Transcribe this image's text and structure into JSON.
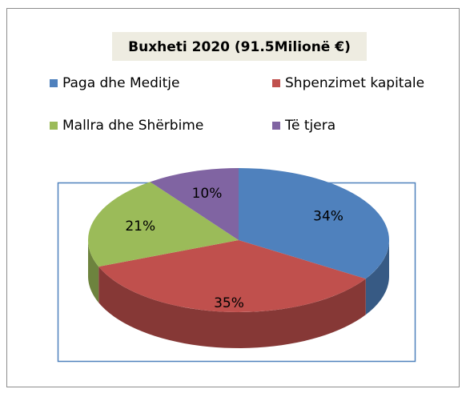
{
  "chart_data": {
    "type": "pie",
    "title": "Buxheti 2020 (91.5Milionë €)",
    "categories": [
      "Paga dhe Meditje",
      "Shpenzimet kapitale",
      "Mallra dhe Shërbime",
      "Të tjera"
    ],
    "values": [
      34,
      35,
      21,
      10
    ],
    "value_labels": [
      "34%",
      "35%",
      "21%",
      "10%"
    ],
    "colors": [
      "#4f81bd",
      "#c0504d",
      "#9bbb59",
      "#8064a2"
    ],
    "legend": "top"
  }
}
